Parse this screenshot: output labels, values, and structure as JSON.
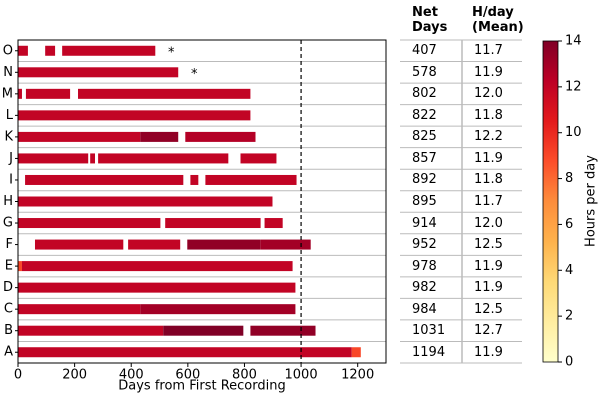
{
  "chart_data": {
    "type": "timeline",
    "xlabel": "Days from First Recording",
    "xlim": [
      0,
      1300
    ],
    "xticks": [
      0,
      200,
      400,
      600,
      800,
      1000,
      1200
    ],
    "vline": 1000,
    "colormap": "YlOrRd",
    "colorbar": {
      "label": "Hours per day",
      "lim": [
        0,
        14
      ],
      "ticks": [
        0,
        2,
        4,
        6,
        8,
        10,
        12,
        14
      ]
    },
    "rows": [
      {
        "label": "O",
        "note": "*",
        "segments": [
          [
            0,
            35,
            12
          ],
          [
            96,
            131,
            12
          ],
          [
            156,
            485,
            12
          ]
        ]
      },
      {
        "label": "N",
        "note": "*",
        "segments": [
          [
            0,
            566,
            12
          ]
        ]
      },
      {
        "label": "M",
        "segments": [
          [
            0,
            14,
            12
          ],
          [
            28,
            184,
            12
          ],
          [
            212,
            821,
            12
          ]
        ]
      },
      {
        "label": "L",
        "segments": [
          [
            0,
            821,
            12
          ]
        ]
      },
      {
        "label": "K",
        "segments": [
          [
            0,
            432,
            12
          ],
          [
            432,
            566,
            13.5
          ],
          [
            591,
            839,
            12.5
          ]
        ]
      },
      {
        "label": "J",
        "segments": [
          [
            0,
            248,
            12
          ],
          [
            255,
            272,
            12
          ],
          [
            283,
            743,
            12
          ],
          [
            786,
            913,
            12
          ]
        ]
      },
      {
        "label": "I",
        "segments": [
          [
            25,
            584,
            12
          ],
          [
            609,
            637,
            12
          ],
          [
            662,
            984,
            12
          ]
        ]
      },
      {
        "label": "H",
        "segments": [
          [
            0,
            899,
            12
          ]
        ]
      },
      {
        "label": "G",
        "segments": [
          [
            0,
            503,
            12
          ],
          [
            520,
            857,
            12
          ],
          [
            871,
            935,
            12
          ]
        ]
      },
      {
        "label": "F",
        "segments": [
          [
            60,
            372,
            12
          ],
          [
            389,
            573,
            12
          ],
          [
            598,
            856,
            13.5
          ],
          [
            856,
            1034,
            13
          ]
        ]
      },
      {
        "label": "E",
        "segments": [
          [
            0,
            14,
            9
          ],
          [
            14,
            970,
            12
          ]
        ]
      },
      {
        "label": "D",
        "segments": [
          [
            0,
            980,
            12
          ]
        ]
      },
      {
        "label": "C",
        "segments": [
          [
            0,
            432,
            12
          ],
          [
            432,
            980,
            13
          ]
        ]
      },
      {
        "label": "B",
        "segments": [
          [
            0,
            513,
            12
          ],
          [
            513,
            796,
            14
          ],
          [
            821,
            1051,
            13.5
          ]
        ]
      },
      {
        "label": "A",
        "segments": [
          [
            0,
            1179,
            12
          ],
          [
            1179,
            1211,
            9
          ]
        ]
      }
    ]
  },
  "table": {
    "columns": [
      "Net Days",
      "H/day (Mean)"
    ],
    "rows": [
      [
        "407",
        "11.7"
      ],
      [
        "578",
        "11.9"
      ],
      [
        "802",
        "12.0"
      ],
      [
        "822",
        "11.8"
      ],
      [
        "825",
        "12.2"
      ],
      [
        "857",
        "11.9"
      ],
      [
        "892",
        "11.8"
      ],
      [
        "895",
        "11.7"
      ],
      [
        "914",
        "12.0"
      ],
      [
        "952",
        "12.5"
      ],
      [
        "978",
        "11.9"
      ],
      [
        "982",
        "11.9"
      ],
      [
        "984",
        "12.5"
      ],
      [
        "1031",
        "12.7"
      ],
      [
        "1194",
        "11.9"
      ]
    ]
  }
}
